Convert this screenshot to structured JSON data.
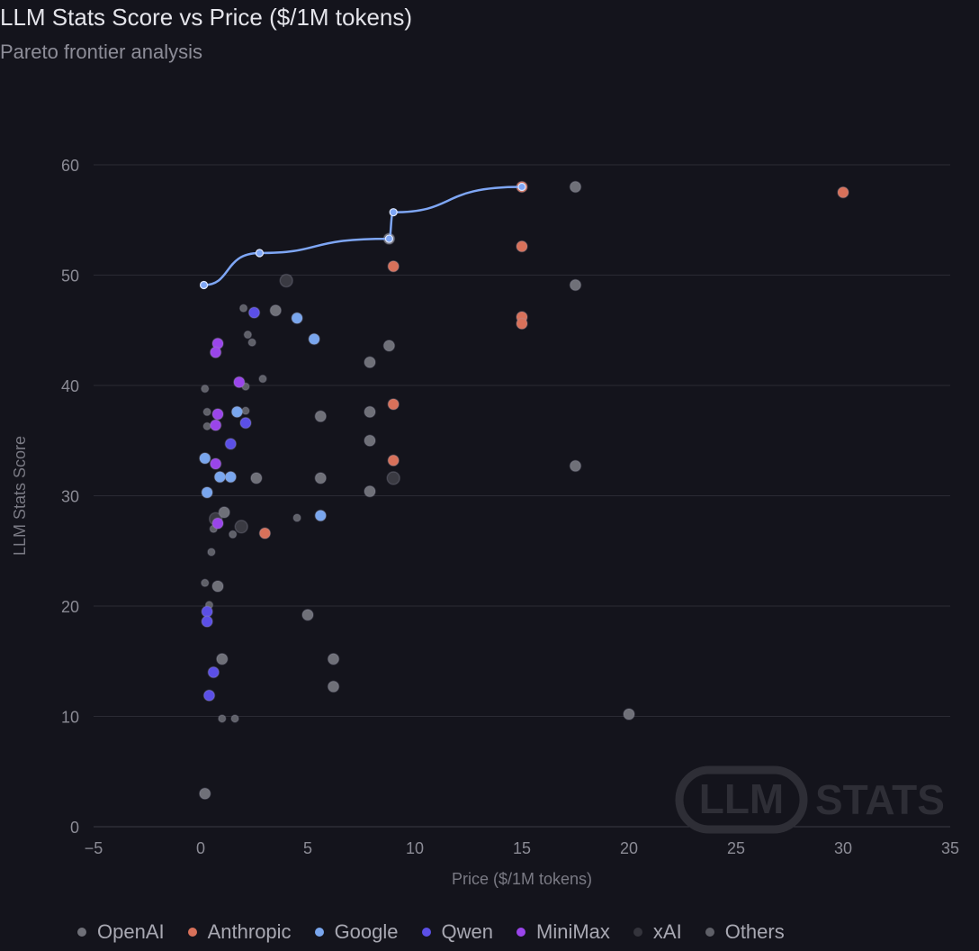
{
  "header": {
    "title": "LLM Stats Score vs Price ($/1M tokens)",
    "subtitle": "Pareto frontier analysis"
  },
  "watermark": {
    "left": "LLM",
    "right": "STATS"
  },
  "colors": {
    "OpenAI": "#6f7078",
    "Anthropic": "#d8715a",
    "Google": "#79a6ee",
    "Qwen": "#5b4fe6",
    "MiniMax": "#9a45ea",
    "xAI": "#3a3a42",
    "Others": "#5f6068",
    "frontier": "#7ea6f5",
    "grid": "#2b2b34",
    "axis_text": "#8b8b95"
  },
  "chart_data": {
    "type": "scatter",
    "title": "LLM Stats Score vs Price ($/1M tokens)",
    "subtitle": "Pareto frontier analysis",
    "xlabel": "Price ($/1M tokens)",
    "ylabel": "LLM Stats Score",
    "xlim": [
      -5,
      35
    ],
    "ylim": [
      0,
      60
    ],
    "xticks": [
      -5,
      0,
      5,
      10,
      15,
      20,
      25,
      30,
      35
    ],
    "yticks": [
      0,
      10,
      20,
      30,
      40,
      50,
      60
    ],
    "xtick_labels": [
      "−5",
      "0",
      "5",
      "10",
      "15",
      "20",
      "25",
      "30",
      "35"
    ],
    "grid": true,
    "legend_position": "bottom",
    "series": [
      {
        "name": "OpenAI",
        "points": [
          [
            17.5,
            58.0
          ],
          [
            17.5,
            49.1
          ],
          [
            17.5,
            32.7
          ],
          [
            20,
            10.2
          ],
          [
            8.8,
            53.3
          ],
          [
            8.8,
            43.6
          ],
          [
            7.9,
            42.1
          ],
          [
            7.9,
            37.6
          ],
          [
            7.9,
            35.0
          ],
          [
            7.9,
            30.4
          ],
          [
            5.6,
            37.2
          ],
          [
            5.6,
            31.6
          ],
          [
            6.2,
            15.2
          ],
          [
            6.2,
            12.7
          ],
          [
            5.0,
            19.2
          ],
          [
            3.5,
            46.8
          ],
          [
            2.6,
            31.6
          ],
          [
            1.1,
            28.5
          ],
          [
            1.0,
            15.2
          ],
          [
            0.8,
            21.8
          ],
          [
            0.2,
            3.0
          ]
        ]
      },
      {
        "name": "Anthropic",
        "points": [
          [
            15,
            58.0
          ],
          [
            30,
            57.5
          ],
          [
            15,
            52.6
          ],
          [
            9,
            50.8
          ],
          [
            15,
            46.2
          ],
          [
            15,
            45.6
          ],
          [
            9,
            38.3
          ],
          [
            9,
            33.2
          ],
          [
            3,
            26.6
          ]
        ]
      },
      {
        "name": "Google",
        "points": [
          [
            4.5,
            46.1
          ],
          [
            5.3,
            44.2
          ],
          [
            1.7,
            37.6
          ],
          [
            0.2,
            33.4
          ],
          [
            1.4,
            31.7
          ],
          [
            0.9,
            31.7
          ],
          [
            0.3,
            30.3
          ],
          [
            5.6,
            28.2
          ]
        ]
      },
      {
        "name": "Qwen",
        "points": [
          [
            2.5,
            46.6
          ],
          [
            2.1,
            36.6
          ],
          [
            1.4,
            34.7
          ],
          [
            0.3,
            19.5
          ],
          [
            0.3,
            18.6
          ],
          [
            0.6,
            14.0
          ],
          [
            0.4,
            11.9
          ]
        ]
      },
      {
        "name": "MiniMax",
        "points": [
          [
            0.8,
            43.8
          ],
          [
            0.7,
            43.0
          ],
          [
            1.8,
            40.3
          ],
          [
            0.8,
            37.4
          ],
          [
            0.7,
            36.4
          ],
          [
            0.7,
            32.9
          ],
          [
            0.8,
            27.5
          ]
        ]
      },
      {
        "name": "xAI",
        "points": [
          [
            4.0,
            49.5
          ],
          [
            9.0,
            31.6
          ],
          [
            1.9,
            27.2
          ],
          [
            0.7,
            27.9
          ]
        ]
      },
      {
        "name": "Others",
        "points": [
          [
            2.0,
            47.0
          ],
          [
            2.2,
            44.6
          ],
          [
            2.4,
            43.9
          ],
          [
            2.9,
            40.6
          ],
          [
            2.1,
            39.9
          ],
          [
            0.2,
            39.7
          ],
          [
            0.3,
            37.6
          ],
          [
            2.1,
            37.7
          ],
          [
            0.3,
            36.3
          ],
          [
            4.5,
            28.0
          ],
          [
            1.5,
            26.5
          ],
          [
            0.6,
            27.0
          ],
          [
            0.5,
            24.9
          ],
          [
            0.2,
            22.1
          ],
          [
            0.4,
            20.1
          ],
          [
            1.0,
            9.8
          ],
          [
            1.6,
            9.8
          ]
        ]
      }
    ],
    "frontier": {
      "name": "Pareto frontier",
      "points": [
        [
          0.15,
          49.1
        ],
        [
          2.75,
          52.0
        ],
        [
          8.8,
          53.3
        ],
        [
          9.0,
          55.7
        ],
        [
          15,
          58.0
        ]
      ]
    }
  },
  "legend": [
    {
      "label": "OpenAI",
      "color": "#6f7078"
    },
    {
      "label": "Anthropic",
      "color": "#d8715a"
    },
    {
      "label": "Google",
      "color": "#79a6ee"
    },
    {
      "label": "Qwen",
      "color": "#5b4fe6"
    },
    {
      "label": "MiniMax",
      "color": "#9a45ea"
    },
    {
      "label": "xAI",
      "color": "#3a3a42"
    },
    {
      "label": "Others",
      "color": "#5f6068"
    }
  ]
}
